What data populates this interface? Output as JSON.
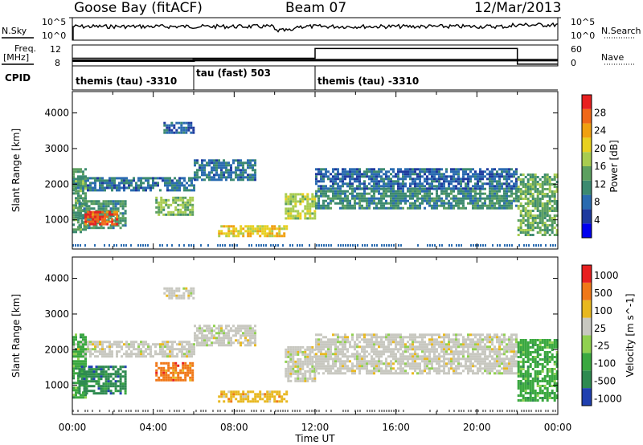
{
  "header": {
    "station": "Goose Bay (fitACF)",
    "beam": "Beam 07",
    "date": "12/Mar/2013"
  },
  "status_panel": {
    "nsky_label": "N.Sky",
    "nsearch_label": "N.Search",
    "noise_ticks": [
      "10^5",
      "10^0"
    ],
    "freq_label_1": "Freq.",
    "freq_label_2": "[MHz]",
    "freq_ticks": [
      "12",
      "8"
    ],
    "nave_label": "Nave",
    "nave_ticks": [
      "60",
      "0"
    ],
    "cpid_label": "CPID",
    "cpid_segments": [
      {
        "text": "themis (tau) -3310",
        "start_hour": 0,
        "end_hour": 6
      },
      {
        "text": "tau (fast) 503",
        "start_hour": 6,
        "end_hour": 12
      },
      {
        "text": "themis (tau) -3310",
        "start_hour": 12,
        "end_hour": 24
      }
    ],
    "freq_series": {
      "hours": [
        0,
        6,
        6,
        24
      ],
      "values": [
        9.0,
        9.0,
        9.1,
        9.1
      ]
    },
    "nave_series": {
      "hours": [
        0,
        12,
        12,
        22,
        22,
        24
      ],
      "values": [
        22,
        22,
        50,
        50,
        5,
        5
      ]
    }
  },
  "chart_data": [
    {
      "type": "heatmap",
      "quantity": "Power",
      "colorbar_label": "Power [dB]",
      "colorbar_ticks": [
        4,
        8,
        12,
        16,
        20,
        24,
        28
      ],
      "colorbar_range": [
        0,
        32
      ],
      "colors": [
        "#0000ee",
        "#1e3a9e",
        "#2a6bb0",
        "#3c8a70",
        "#5ca060",
        "#a8cc50",
        "#e8d020",
        "#f0a010",
        "#f06818",
        "#e82020"
      ],
      "xlabel": "",
      "ylabel": "Slant Range [km]",
      "xlim": [
        0,
        24
      ],
      "ylim": [
        180,
        4600
      ],
      "y_ticks": [
        1000,
        2000,
        3000,
        4000
      ],
      "regions": [
        {
          "x": [
            0.0,
            6.0
          ],
          "y": [
            1850,
            2200
          ],
          "value": 9
        },
        {
          "x": [
            0.0,
            0.6
          ],
          "y": [
            650,
            2450
          ],
          "value": 13
        },
        {
          "x": [
            0.3,
            2.6
          ],
          "y": [
            750,
            1550
          ],
          "value": 12
        },
        {
          "x": [
            0.6,
            2.2
          ],
          "y": [
            900,
            1250
          ],
          "value": 28
        },
        {
          "x": [
            4.1,
            6.0
          ],
          "y": [
            1150,
            1650
          ],
          "value": 15
        },
        {
          "x": [
            4.5,
            6.0
          ],
          "y": [
            3450,
            3750
          ],
          "value": 7
        },
        {
          "x": [
            6.0,
            9.0
          ],
          "y": [
            2150,
            2700
          ],
          "value": 9
        },
        {
          "x": [
            7.2,
            10.6
          ],
          "y": [
            550,
            850
          ],
          "value": 21
        },
        {
          "x": [
            10.5,
            12.0
          ],
          "y": [
            1050,
            1750
          ],
          "value": 18
        },
        {
          "x": [
            12.0,
            22.0
          ],
          "y": [
            1350,
            1900
          ],
          "value": 11
        },
        {
          "x": [
            12.0,
            22.0
          ],
          "y": [
            1900,
            2450
          ],
          "value": 8
        },
        {
          "x": [
            22.0,
            24.0
          ],
          "y": [
            600,
            2300
          ],
          "value": 14
        }
      ]
    },
    {
      "type": "heatmap",
      "quantity": "Velocity",
      "colorbar_label": "Velocity [m s^-1]",
      "colorbar_ticks": [
        "1000",
        "500",
        "100",
        "25",
        "-25",
        "-100",
        "-500",
        "-1000"
      ],
      "colors": [
        "#2040b0",
        "#2e8a50",
        "#3aa840",
        "#90d050",
        "#c8c8c0",
        "#e8b820",
        "#f07818",
        "#e82020"
      ],
      "xlabel": "Time UT",
      "ylabel": "Slant Range [km]",
      "xlim": [
        0,
        24
      ],
      "ylim": [
        180,
        4600
      ],
      "y_ticks": [
        1000,
        2000,
        3000,
        4000
      ],
      "x_ticks": [
        "00:00",
        "04:00",
        "08:00",
        "12:00",
        "16:00",
        "20:00",
        "00:00"
      ],
      "regions": [
        {
          "x": [
            0.0,
            6.0
          ],
          "y": [
            1800,
            2250
          ],
          "value": 4
        },
        {
          "x": [
            0.0,
            0.6
          ],
          "y": [
            650,
            2450
          ],
          "value": 2
        },
        {
          "x": [
            0.3,
            2.6
          ],
          "y": [
            750,
            1550
          ],
          "value": 1
        },
        {
          "x": [
            4.1,
            6.0
          ],
          "y": [
            1150,
            1650
          ],
          "value": 6
        },
        {
          "x": [
            4.5,
            6.0
          ],
          "y": [
            3450,
            3750
          ],
          "value": 4
        },
        {
          "x": [
            6.0,
            9.0
          ],
          "y": [
            2150,
            2700
          ],
          "value": 4
        },
        {
          "x": [
            7.2,
            10.6
          ],
          "y": [
            550,
            850
          ],
          "value": 5
        },
        {
          "x": [
            10.5,
            12.0
          ],
          "y": [
            1100,
            2100
          ],
          "value": 4
        },
        {
          "x": [
            12.0,
            22.0
          ],
          "y": [
            1350,
            2450
          ],
          "value": 4
        },
        {
          "x": [
            22.0,
            24.0
          ],
          "y": [
            600,
            2300
          ],
          "value": 2
        }
      ]
    }
  ]
}
